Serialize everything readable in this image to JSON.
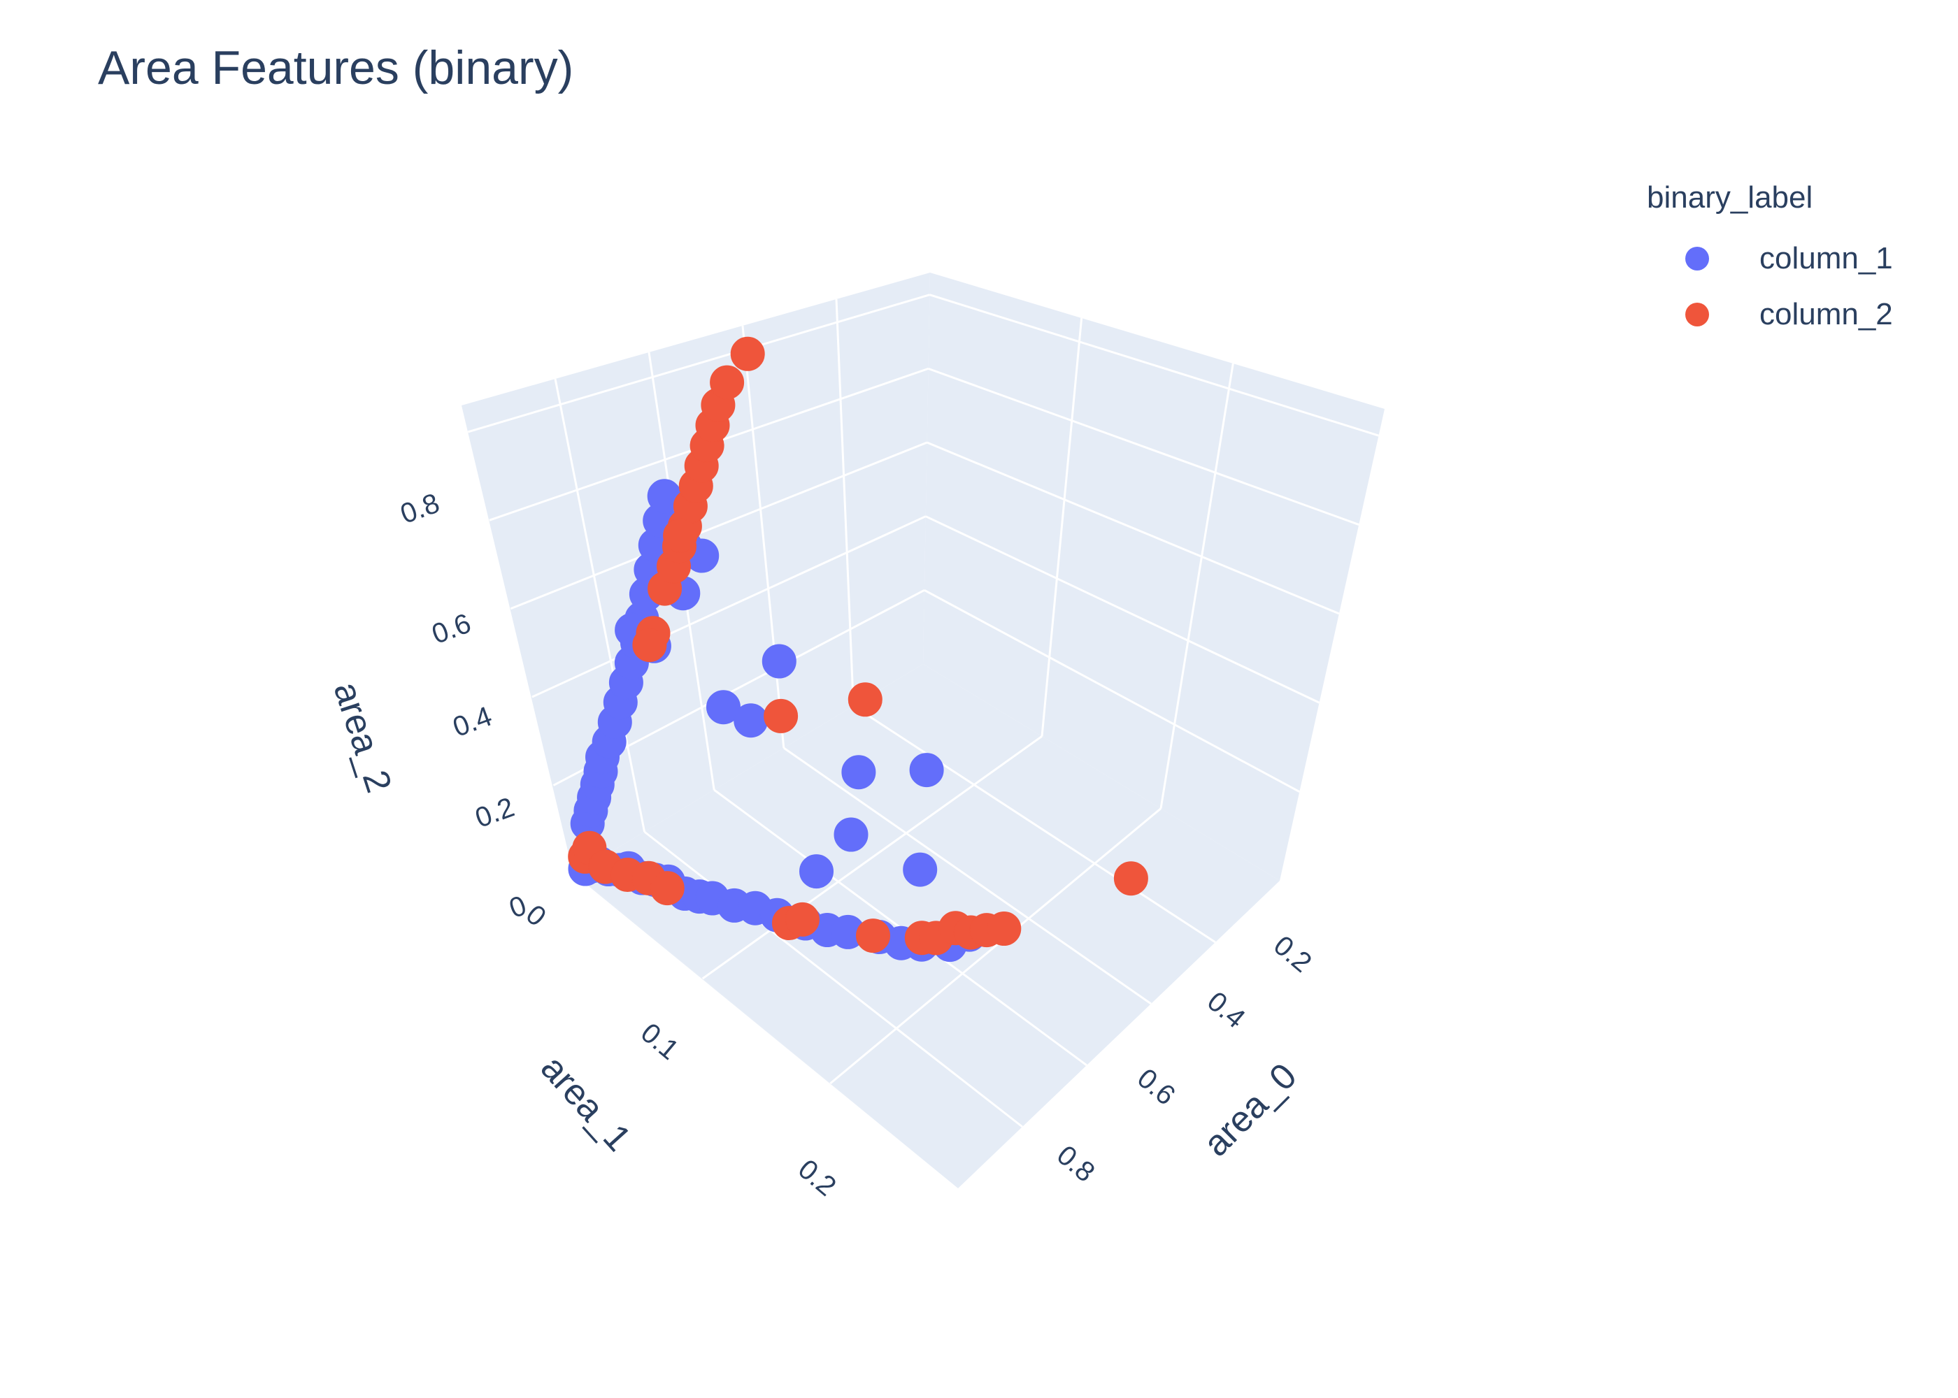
{
  "chart_data": {
    "type": "scatter3d",
    "title": "Area Features (binary)",
    "legend_title": "binary_label",
    "legend_placement": "top-right",
    "axes": {
      "x": {
        "label": "area_0",
        "ticks": [
          "0.2",
          "0.4",
          "0.6",
          "0.8"
        ]
      },
      "y": {
        "label": "area_1",
        "ticks": [
          "0",
          "0.1",
          "0.2"
        ]
      },
      "z": {
        "label": "area_2",
        "ticks": [
          "0",
          "0.2",
          "0.4",
          "0.6",
          "0.8"
        ]
      }
    },
    "colors": {
      "column_1": "#636efa",
      "column_2": "#ef553b",
      "grid_bg": "#e5ecf6"
    },
    "series": [
      {
        "name": "column_1",
        "color": "#636efa",
        "points": [
          [
            0.02,
            0.003,
            0.01
          ],
          [
            0.03,
            0.006,
            0.02
          ],
          [
            0.04,
            0.009,
            0.03
          ],
          [
            0.05,
            0.012,
            0.02
          ],
          [
            0.06,
            0.018,
            0.03
          ],
          [
            0.07,
            0.022,
            0.04
          ],
          [
            0.08,
            0.028,
            0.03
          ],
          [
            0.09,
            0.035,
            0.04
          ],
          [
            0.1,
            0.042,
            0.05
          ],
          [
            0.11,
            0.05,
            0.04
          ],
          [
            0.12,
            0.058,
            0.05
          ],
          [
            0.13,
            0.065,
            0.06
          ],
          [
            0.15,
            0.075,
            0.06
          ],
          [
            0.17,
            0.085,
            0.07
          ],
          [
            0.19,
            0.095,
            0.07
          ],
          [
            0.21,
            0.11,
            0.08
          ],
          [
            0.23,
            0.12,
            0.08
          ],
          [
            0.25,
            0.13,
            0.09
          ],
          [
            0.28,
            0.145,
            0.1
          ],
          [
            0.3,
            0.155,
            0.1
          ],
          [
            0.32,
            0.165,
            0.11
          ],
          [
            0.36,
            0.175,
            0.11
          ],
          [
            0.4,
            0.18,
            0.12
          ],
          [
            0.05,
            0.004,
            0.1
          ],
          [
            0.06,
            0.006,
            0.13
          ],
          [
            0.07,
            0.008,
            0.16
          ],
          [
            0.08,
            0.01,
            0.19
          ],
          [
            0.09,
            0.012,
            0.22
          ],
          [
            0.1,
            0.013,
            0.25
          ],
          [
            0.12,
            0.015,
            0.28
          ],
          [
            0.14,
            0.017,
            0.32
          ],
          [
            0.16,
            0.019,
            0.36
          ],
          [
            0.18,
            0.021,
            0.4
          ],
          [
            0.2,
            0.023,
            0.44
          ],
          [
            0.22,
            0.025,
            0.48
          ],
          [
            0.24,
            0.027,
            0.53
          ],
          [
            0.26,
            0.029,
            0.58
          ],
          [
            0.28,
            0.031,
            0.63
          ],
          [
            0.3,
            0.033,
            0.68
          ],
          [
            0.32,
            0.035,
            0.73
          ],
          [
            0.34,
            0.037,
            0.78
          ],
          [
            0.26,
            0.01,
            0.45
          ],
          [
            0.3,
            0.012,
            0.4
          ],
          [
            0.32,
            0.05,
            0.35
          ],
          [
            0.35,
            0.06,
            0.33
          ],
          [
            0.38,
            0.02,
            0.5
          ],
          [
            0.42,
            0.018,
            0.58
          ],
          [
            0.45,
            0.02,
            0.55
          ],
          [
            0.3,
            0.1,
            0.12
          ],
          [
            0.5,
            0.12,
            0.06
          ],
          [
            0.62,
            0.05,
            0.05
          ],
          [
            0.58,
            0.02,
            0.25
          ],
          [
            0.7,
            0.08,
            0.08
          ],
          [
            0.44,
            0.09,
            0.1
          ]
        ]
      },
      {
        "name": "column_2",
        "color": "#ef553b",
        "points": [
          [
            0.03,
            0.002,
            0.03
          ],
          [
            0.04,
            0.004,
            0.05
          ],
          [
            0.05,
            0.01,
            0.02
          ],
          [
            0.07,
            0.02,
            0.02
          ],
          [
            0.09,
            0.03,
            0.03
          ],
          [
            0.1,
            0.04,
            0.03
          ],
          [
            0.2,
            0.1,
            0.06
          ],
          [
            0.22,
            0.105,
            0.07
          ],
          [
            0.28,
            0.14,
            0.09
          ],
          [
            0.34,
            0.16,
            0.1
          ],
          [
            0.36,
            0.165,
            0.1
          ],
          [
            0.4,
            0.17,
            0.11
          ],
          [
            0.42,
            0.175,
            0.1
          ],
          [
            0.44,
            0.182,
            0.11
          ],
          [
            0.46,
            0.19,
            0.12
          ],
          [
            0.25,
            0.03,
            0.5
          ],
          [
            0.3,
            0.032,
            0.58
          ],
          [
            0.33,
            0.034,
            0.62
          ],
          [
            0.35,
            0.036,
            0.66
          ],
          [
            0.37,
            0.038,
            0.7
          ],
          [
            0.39,
            0.04,
            0.74
          ],
          [
            0.41,
            0.042,
            0.78
          ],
          [
            0.43,
            0.044,
            0.82
          ],
          [
            0.45,
            0.046,
            0.86
          ],
          [
            0.47,
            0.048,
            0.9
          ],
          [
            0.49,
            0.05,
            0.94
          ],
          [
            0.52,
            0.052,
            0.98
          ],
          [
            0.58,
            0.055,
            1.02
          ],
          [
            0.28,
            0.015,
            0.42
          ],
          [
            0.42,
            0.016,
            0.6
          ],
          [
            0.52,
            0.03,
            0.18
          ],
          [
            0.65,
            0.06,
            0.22
          ],
          [
            0.78,
            0.2,
            0.05
          ]
        ]
      }
    ]
  }
}
